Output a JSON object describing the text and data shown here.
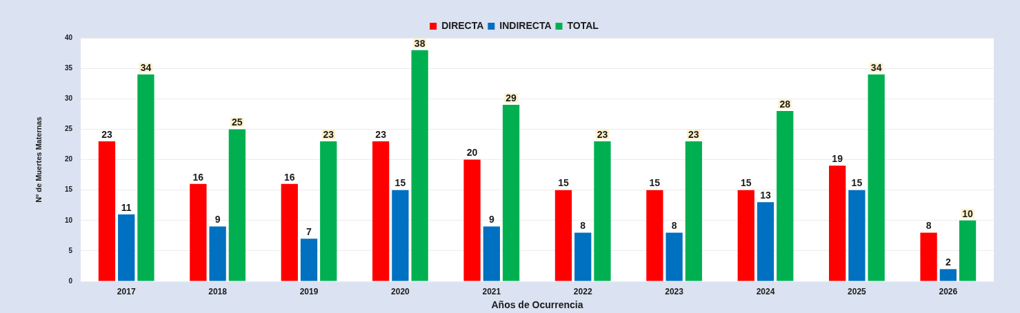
{
  "chart_data": {
    "type": "bar",
    "categories": [
      "2017",
      "2018",
      "2019",
      "2020",
      "2021",
      "2022",
      "2023",
      "2024",
      "2025",
      "2026"
    ],
    "series": [
      {
        "name": "DIRECTA",
        "color": "#ff0000",
        "values": [
          23,
          16,
          16,
          23,
          20,
          15,
          15,
          15,
          19,
          8
        ]
      },
      {
        "name": "INDIRECTA",
        "color": "#0070c0",
        "values": [
          11,
          9,
          7,
          15,
          9,
          8,
          8,
          13,
          15,
          2
        ]
      },
      {
        "name": "TOTAL",
        "color": "#00b050",
        "values": [
          34,
          25,
          23,
          38,
          29,
          23,
          23,
          28,
          34,
          10
        ]
      }
    ],
    "xlabel": "Años de Ocurrencia",
    "ylabel": "Nº de Muertes Maternas",
    "ylim": [
      0,
      40
    ],
    "yticks": [
      0,
      5,
      10,
      15,
      20,
      25,
      30,
      35,
      40
    ],
    "grid": "y",
    "legend": "top",
    "data_labels": true
  }
}
